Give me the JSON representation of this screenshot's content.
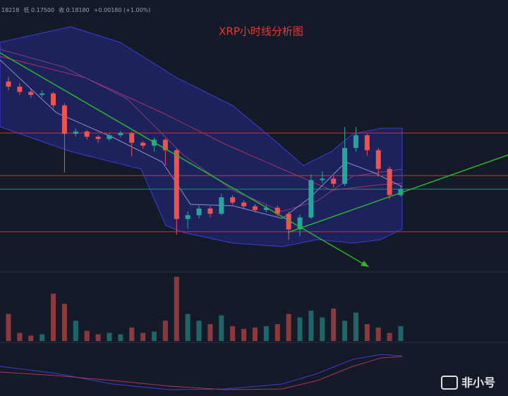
{
  "chart_data": {
    "type": "candlestick",
    "title": "XRP小时线分析图",
    "header": [
      "18218",
      "低 0.17500",
      "收 0.18180",
      "+0.00180 (+1.00%)"
    ],
    "watermark": "非小号",
    "up_color": "#26a69a",
    "down_color": "#ef5350",
    "level_color": "#c62828",
    "last_color": "#1f8a80",
    "ylim": [
      0.1708,
      0.2071
    ],
    "vlim": [
      0,
      100
    ],
    "levels": [
      0.1893,
      0.1836,
      0.1761
    ],
    "open": [
      0.1962,
      0.1955,
      0.1948,
      0.1944,
      0.1946,
      0.193,
      0.1892,
      0.1895,
      0.1888,
      0.1885,
      0.189,
      0.1893,
      0.188,
      0.1876,
      0.1884,
      0.187,
      0.1778,
      0.1783,
      0.1792,
      0.1785,
      0.1807,
      0.18,
      0.1795,
      0.179,
      0.1793,
      0.1785,
      0.1764,
      0.178,
      0.183,
      0.1832,
      0.1825,
      0.1873,
      0.189,
      0.187,
      0.1845,
      0.181
    ],
    "high": [
      0.1968,
      0.196,
      0.1952,
      0.195,
      0.1948,
      0.1933,
      0.1899,
      0.1897,
      0.189,
      0.1893,
      0.1896,
      0.1895,
      0.1882,
      0.1887,
      0.1886,
      0.1872,
      0.1788,
      0.1796,
      0.1795,
      0.1812,
      0.181,
      0.1803,
      0.1798,
      0.1797,
      0.1796,
      0.1788,
      0.1784,
      0.1838,
      0.1842,
      0.1836,
      0.1901,
      0.1901,
      0.1892,
      0.1873,
      0.1848,
      0.1822
    ],
    "low": [
      0.195,
      0.1944,
      0.194,
      0.1941,
      0.1926,
      0.184,
      0.1888,
      0.1884,
      0.188,
      0.1882,
      0.1887,
      0.1862,
      0.1872,
      0.1868,
      0.185,
      0.1757,
      0.1765,
      0.1779,
      0.178,
      0.1783,
      0.1797,
      0.1791,
      0.1787,
      0.1787,
      0.1782,
      0.175,
      0.1755,
      0.1778,
      0.1826,
      0.182,
      0.1822,
      0.1868,
      0.1863,
      0.1835,
      0.1805,
      0.1808
    ],
    "close": [
      0.1955,
      0.1948,
      0.1944,
      0.1946,
      0.193,
      0.1892,
      0.1895,
      0.1888,
      0.1885,
      0.189,
      0.1893,
      0.188,
      0.1876,
      0.1884,
      0.187,
      0.1778,
      0.1783,
      0.1792,
      0.1785,
      0.1807,
      0.18,
      0.1795,
      0.179,
      0.1793,
      0.1785,
      0.1764,
      0.178,
      0.183,
      0.1832,
      0.1825,
      0.1873,
      0.189,
      0.187,
      0.1845,
      0.181,
      0.1818
    ],
    "volume": [
      40,
      12,
      8,
      10,
      70,
      55,
      30,
      15,
      10,
      12,
      10,
      20,
      12,
      14,
      30,
      95,
      40,
      30,
      25,
      38,
      22,
      18,
      20,
      22,
      25,
      40,
      35,
      45,
      35,
      48,
      30,
      42,
      25,
      20,
      12,
      22
    ]
  }
}
